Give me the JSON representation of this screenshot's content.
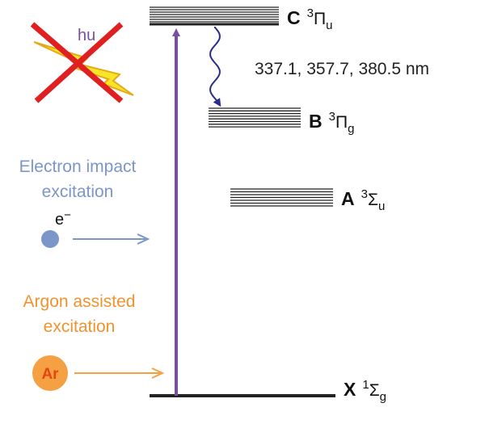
{
  "photon": {
    "label": "hu"
  },
  "emission": {
    "label": "337.1, 357.7, 380.5 nm"
  },
  "electron": {
    "title_lines": [
      "Electron impact",
      "excitation"
    ],
    "particle": "e",
    "charge": "−"
  },
  "argon": {
    "title_lines": [
      "Argon assisted",
      "excitation"
    ],
    "particle": "Ar"
  },
  "states": [
    {
      "letter": "C",
      "multiplicity": "3",
      "symbol": "Π",
      "subscript": "u"
    },
    {
      "letter": "B",
      "multiplicity": "3",
      "symbol": "Π",
      "subscript": "g"
    },
    {
      "letter": "A",
      "multiplicity": "3",
      "symbol": "Σ",
      "subscript": "u"
    },
    {
      "letter": "X",
      "multiplicity": "1",
      "symbol": "Σ",
      "subscript": "g"
    }
  ]
}
